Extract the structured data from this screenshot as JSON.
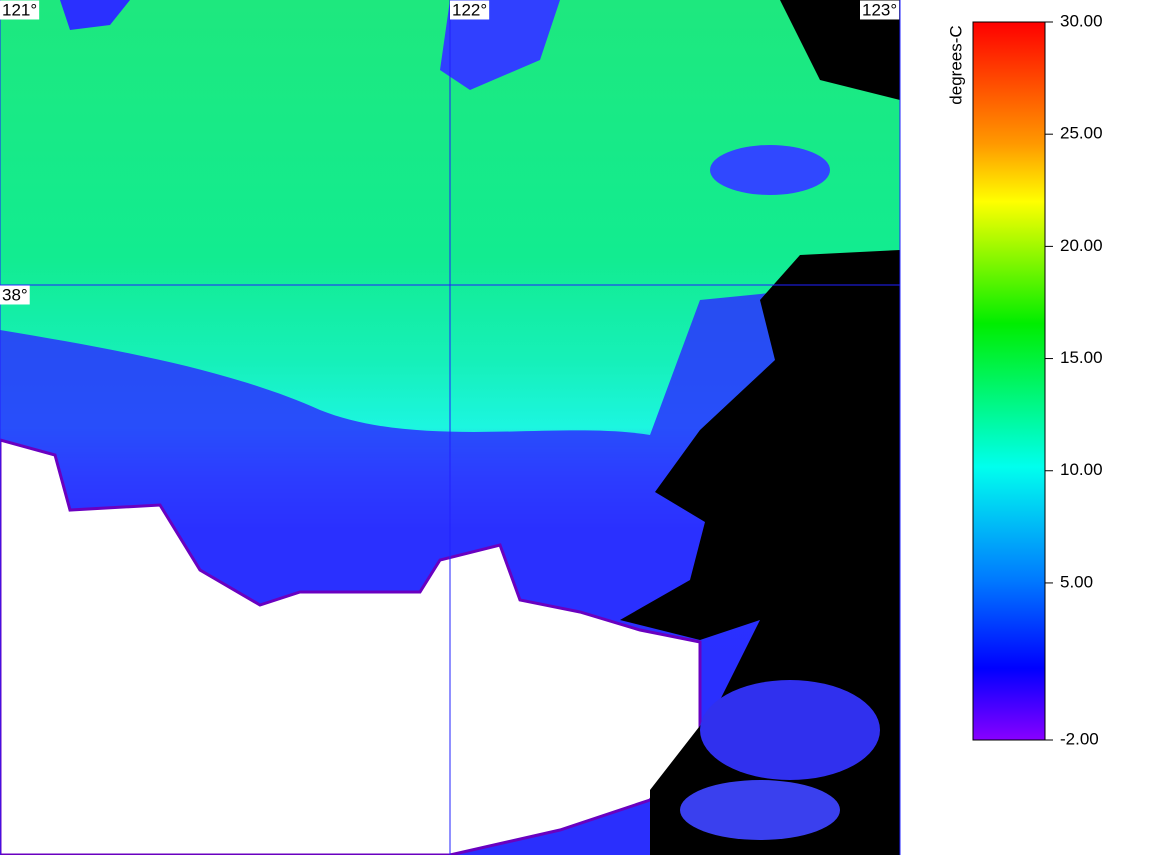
{
  "map": {
    "xlim": [
      121,
      123
    ],
    "ylim": [
      37.0,
      38.5
    ],
    "lon_lines": [
      {
        "value": 121,
        "label": "121°"
      },
      {
        "value": 122,
        "label": "122°"
      },
      {
        "value": 123,
        "label": "123°"
      }
    ],
    "lat_lines": [
      {
        "value": 38,
        "label": "38°"
      }
    ]
  },
  "colorbar": {
    "label": "degrees-C",
    "lim": [
      -2,
      30
    ],
    "ticks": [
      {
        "value": 30,
        "label": "30.00"
      },
      {
        "value": 25,
        "label": "25.00"
      },
      {
        "value": 20,
        "label": "20.00"
      },
      {
        "value": 15,
        "label": "15.00"
      },
      {
        "value": 10,
        "label": "10.00"
      },
      {
        "value": 5,
        "label": "5.00"
      },
      {
        "value": -2,
        "label": "-2.00"
      }
    ]
  }
}
